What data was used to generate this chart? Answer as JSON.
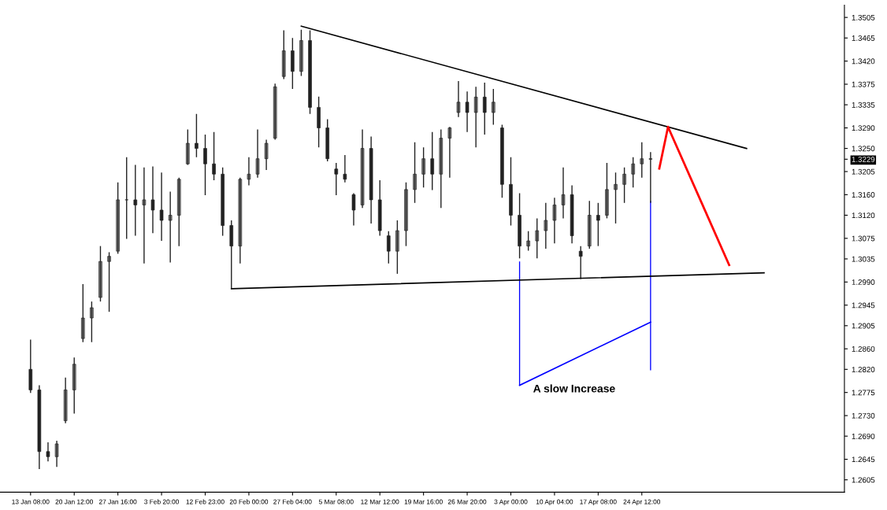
{
  "chart_data": {
    "type": "candlestick",
    "categories": [
      "13 Jan 08:00",
      null,
      null,
      null,
      null,
      "20 Jan 12:00",
      null,
      null,
      null,
      null,
      "27 Jan 16:00",
      null,
      null,
      null,
      null,
      "3 Feb 20:00",
      null,
      null,
      null,
      null,
      "12 Feb 23:00",
      null,
      null,
      null,
      null,
      "20 Feb 00:00",
      null,
      null,
      null,
      null,
      "27 Feb 04:00",
      null,
      null,
      null,
      null,
      "5 Mar 08:00",
      null,
      null,
      null,
      null,
      "12 Mar 12:00",
      null,
      null,
      null,
      null,
      "19 Mar 16:00",
      null,
      null,
      null,
      null,
      "26 Mar 20:00",
      null,
      null,
      null,
      null,
      "3 Apr 00:00",
      null,
      null,
      null,
      null,
      "10 Apr 04:00",
      null,
      null,
      null,
      null,
      "17 Apr 08:00",
      null,
      null,
      null,
      null,
      "24 Apr 12:00",
      null,
      null,
      null,
      null,
      null,
      null,
      null,
      null,
      null,
      null,
      null,
      null,
      null,
      null,
      null,
      null,
      null,
      null,
      null,
      null,
      null,
      null,
      null
    ],
    "ohlc": [
      [
        1.282,
        1.2878,
        1.2774,
        1.278
      ],
      [
        1.278,
        1.2789,
        1.2626,
        1.266
      ],
      [
        1.266,
        1.2678,
        1.2641,
        1.265
      ],
      [
        1.265,
        1.2681,
        1.263,
        1.2675
      ],
      [
        1.272,
        1.2804,
        1.2715,
        1.278
      ],
      [
        1.278,
        1.2843,
        1.2734,
        1.283
      ],
      [
        1.288,
        1.2986,
        1.2873,
        1.292
      ],
      [
        1.292,
        1.2952,
        1.2873,
        1.294
      ],
      [
        1.296,
        1.306,
        1.2952,
        1.303
      ],
      [
        1.303,
        1.3048,
        1.2932,
        1.304
      ],
      [
        1.305,
        1.3184,
        1.3045,
        1.315
      ],
      [
        1.315,
        1.3233,
        1.3074,
        1.315
      ],
      [
        1.315,
        1.3218,
        1.308,
        1.314
      ],
      [
        1.314,
        1.3213,
        1.3026,
        1.315
      ],
      [
        1.315,
        1.3215,
        1.3085,
        1.313
      ],
      [
        1.313,
        1.3203,
        1.307,
        1.311
      ],
      [
        1.311,
        1.3166,
        1.3028,
        1.312
      ],
      [
        1.312,
        1.3193,
        1.306,
        1.319
      ],
      [
        1.322,
        1.3287,
        1.3218,
        1.326
      ],
      [
        1.326,
        1.3317,
        1.3233,
        1.325
      ],
      [
        1.325,
        1.3277,
        1.3159,
        1.322
      ],
      [
        1.322,
        1.3282,
        1.3188,
        1.32
      ],
      [
        1.32,
        1.3213,
        1.308,
        1.31
      ],
      [
        1.31,
        1.311,
        1.2977,
        1.306
      ],
      [
        1.306,
        1.3193,
        1.3026,
        1.319
      ],
      [
        1.319,
        1.3233,
        1.3178,
        1.32
      ],
      [
        1.32,
        1.3287,
        1.3193,
        1.323
      ],
      [
        1.323,
        1.3267,
        1.3208,
        1.326
      ],
      [
        1.327,
        1.3376,
        1.3267,
        1.337
      ],
      [
        1.339,
        1.348,
        1.3385,
        1.344
      ],
      [
        1.344,
        1.3465,
        1.3366,
        1.34
      ],
      [
        1.34,
        1.3481,
        1.3391,
        1.346
      ],
      [
        1.346,
        1.348,
        1.3317,
        1.333
      ],
      [
        1.333,
        1.3351,
        1.3252,
        1.329
      ],
      [
        1.329,
        1.3307,
        1.3225,
        1.323
      ],
      [
        1.321,
        1.3222,
        1.3159,
        1.32
      ],
      [
        1.32,
        1.3237,
        1.3184,
        1.319
      ],
      [
        1.316,
        1.3163,
        1.31,
        1.313
      ],
      [
        1.314,
        1.3287,
        1.3134,
        1.325
      ],
      [
        1.325,
        1.3273,
        1.3104,
        1.315
      ],
      [
        1.315,
        1.3188,
        1.308,
        1.309
      ],
      [
        1.308,
        1.3089,
        1.3026,
        1.305
      ],
      [
        1.305,
        1.311,
        1.3006,
        1.309
      ],
      [
        1.309,
        1.3184,
        1.306,
        1.317
      ],
      [
        1.317,
        1.3262,
        1.3144,
        1.32
      ],
      [
        1.32,
        1.3252,
        1.3174,
        1.323
      ],
      [
        1.323,
        1.3282,
        1.3169,
        1.32
      ],
      [
        1.32,
        1.3287,
        1.3134,
        1.327
      ],
      [
        1.327,
        1.3292,
        1.3193,
        1.329
      ],
      [
        1.332,
        1.3381,
        1.3311,
        1.334
      ],
      [
        1.334,
        1.3361,
        1.3282,
        1.332
      ],
      [
        1.332,
        1.337,
        1.3252,
        1.335
      ],
      [
        1.335,
        1.3378,
        1.3277,
        1.332
      ],
      [
        1.332,
        1.3366,
        1.3296,
        1.334
      ],
      [
        1.329,
        1.3296,
        1.3154,
        1.318
      ],
      [
        1.318,
        1.3233,
        1.31,
        1.312
      ],
      [
        1.312,
        1.3163,
        1.3036,
        1.306
      ],
      [
        1.306,
        1.3089,
        1.3051,
        1.307
      ],
      [
        1.307,
        1.3114,
        1.3036,
        1.309
      ],
      [
        1.309,
        1.3144,
        1.3055,
        1.311
      ],
      [
        1.311,
        1.3154,
        1.3065,
        1.314
      ],
      [
        1.314,
        1.3213,
        1.3114,
        1.316
      ],
      [
        1.316,
        1.3178,
        1.3065,
        1.308
      ],
      [
        1.305,
        1.306,
        1.2996,
        1.304
      ],
      [
        1.306,
        1.3148,
        1.3055,
        1.312
      ],
      [
        1.312,
        1.3144,
        1.306,
        1.311
      ],
      [
        1.312,
        1.3222,
        1.3114,
        1.317
      ],
      [
        1.317,
        1.3203,
        1.3104,
        1.318
      ],
      [
        1.318,
        1.3213,
        1.3144,
        1.32
      ],
      [
        1.32,
        1.3233,
        1.3174,
        1.322
      ],
      [
        1.322,
        1.3262,
        1.3193,
        1.323
      ],
      [
        1.323,
        1.3243,
        1.3144,
        1.3229
      ],
      null,
      null,
      null,
      null,
      null,
      null,
      null,
      null,
      null,
      null,
      null,
      null,
      null,
      null,
      null,
      null,
      null,
      null,
      null,
      null,
      null,
      null
    ],
    "series": [
      {
        "type": "line",
        "color": "#000000",
        "values": [
          null,
          null,
          null,
          null,
          null,
          null,
          null,
          null,
          null,
          null,
          null,
          null,
          null,
          null,
          null,
          null,
          null,
          null,
          null,
          null,
          null,
          null,
          null,
          null,
          null,
          null,
          null,
          null,
          null,
          null,
          null,
          1.3488,
          null,
          null,
          null,
          null,
          null,
          null,
          null,
          null,
          null,
          null,
          null,
          null,
          null,
          null,
          null,
          null,
          null,
          null,
          null,
          null,
          null,
          null,
          null,
          null,
          null,
          null,
          null,
          null,
          null,
          null,
          null,
          null,
          null,
          null,
          null,
          null,
          null,
          null,
          null,
          null,
          null,
          null,
          null,
          null,
          null,
          null,
          null,
          null,
          null,
          null,
          1.325,
          null,
          null,
          null,
          null,
          null,
          null,
          null,
          null,
          null,
          null,
          null
        ]
      },
      {
        "type": "line",
        "color": "#000000",
        "values": [
          null,
          null,
          null,
          null,
          null,
          null,
          null,
          null,
          null,
          null,
          null,
          null,
          null,
          null,
          null,
          null,
          null,
          null,
          null,
          null,
          null,
          null,
          null,
          1.2977,
          null,
          null,
          null,
          null,
          null,
          null,
          null,
          null,
          null,
          null,
          null,
          null,
          null,
          null,
          null,
          null,
          null,
          null,
          null,
          null,
          null,
          null,
          null,
          null,
          null,
          null,
          null,
          null,
          null,
          null,
          null,
          null,
          null,
          null,
          null,
          null,
          null,
          null,
          null,
          null,
          null,
          null,
          null,
          null,
          null,
          null,
          null,
          null,
          null,
          null,
          null,
          null,
          null,
          null,
          null,
          null,
          null,
          null,
          null,
          null,
          1.3008,
          null,
          null,
          null,
          null,
          null,
          null,
          null,
          null,
          null
        ]
      },
      {
        "type": "line",
        "color": "#ff0000",
        "values": [
          null,
          null,
          null,
          null,
          null,
          null,
          null,
          null,
          null,
          null,
          null,
          null,
          null,
          null,
          null,
          null,
          null,
          null,
          null,
          null,
          null,
          null,
          null,
          null,
          null,
          null,
          null,
          null,
          null,
          null,
          null,
          null,
          null,
          null,
          null,
          null,
          null,
          null,
          null,
          null,
          null,
          null,
          null,
          null,
          null,
          null,
          null,
          null,
          null,
          null,
          null,
          null,
          null,
          null,
          null,
          null,
          null,
          null,
          null,
          null,
          null,
          null,
          null,
          null,
          null,
          null,
          null,
          null,
          null,
          null,
          null,
          null,
          1.3211,
          1.3292,
          null,
          null,
          null,
          null,
          null,
          null,
          1.3023,
          null,
          null,
          null,
          null,
          null,
          null,
          null,
          null,
          null,
          null,
          null,
          null,
          null
        ]
      },
      {
        "type": "line",
        "color": "#0000ff",
        "values": [
          null,
          null,
          null,
          null,
          null,
          null,
          null,
          null,
          null,
          null,
          null,
          null,
          null,
          null,
          null,
          null,
          null,
          null,
          null,
          null,
          null,
          null,
          null,
          null,
          null,
          null,
          null,
          null,
          null,
          null,
          null,
          null,
          null,
          null,
          null,
          null,
          null,
          null,
          null,
          null,
          null,
          null,
          null,
          null,
          null,
          null,
          null,
          null,
          null,
          null,
          null,
          null,
          null,
          null,
          null,
          null,
          1.2789,
          null,
          null,
          null,
          null,
          null,
          null,
          null,
          null,
          null,
          null,
          null,
          null,
          null,
          null,
          1.2912,
          null,
          null,
          null,
          null,
          null,
          null,
          null,
          null,
          null,
          null,
          null,
          null,
          null,
          null,
          null,
          null,
          null,
          null,
          null,
          null,
          null,
          null
        ]
      },
      {
        "type": "bar",
        "color": "#0000ff",
        "values": [
          null,
          null,
          null,
          null,
          null,
          null,
          null,
          null,
          null,
          null,
          null,
          null,
          null,
          null,
          null,
          null,
          null,
          null,
          null,
          null,
          null,
          null,
          null,
          null,
          null,
          null,
          null,
          null,
          null,
          null,
          null,
          null,
          null,
          null,
          null,
          null,
          null,
          null,
          null,
          null,
          null,
          null,
          null,
          null,
          null,
          null,
          null,
          null,
          null,
          null,
          null,
          null,
          null,
          null,
          null,
          null,
          0.0241,
          null,
          null,
          null,
          null,
          null,
          null,
          null,
          null,
          null,
          null,
          null,
          null,
          null,
          null,
          0.033,
          null,
          null,
          null,
          null,
          null,
          null,
          null,
          null,
          null,
          null,
          null,
          null,
          null,
          null,
          null,
          null,
          null,
          null,
          null,
          null,
          null,
          null
        ],
        "base": [
          null,
          null,
          null,
          null,
          null,
          null,
          null,
          null,
          null,
          null,
          null,
          null,
          null,
          null,
          null,
          null,
          null,
          null,
          null,
          null,
          null,
          null,
          null,
          null,
          null,
          null,
          null,
          null,
          null,
          null,
          null,
          null,
          null,
          null,
          null,
          null,
          null,
          null,
          null,
          null,
          null,
          null,
          null,
          null,
          null,
          null,
          null,
          null,
          null,
          null,
          null,
          null,
          null,
          null,
          null,
          null,
          1.2789,
          null,
          null,
          null,
          null,
          null,
          null,
          null,
          null,
          null,
          null,
          null,
          null,
          null,
          null,
          1.2818,
          null,
          null,
          null,
          null,
          null,
          null,
          null,
          null,
          null,
          null,
          null,
          null,
          null,
          null,
          null,
          null,
          null,
          null,
          null,
          null,
          null,
          null
        ]
      }
    ],
    "ylim": [
      1.2581,
      1.3529
    ],
    "yticks": [
      1.2605,
      1.2645,
      {
        "value": 1.269,
        "label": "1.2690"
      },
      {
        "value": 1.273,
        "label": "1.2730"
      },
      1.2775,
      {
        "value": 1.282,
        "label": "1.2820"
      },
      {
        "value": 1.286,
        "label": "1.2860"
      },
      1.2905,
      1.2945,
      {
        "value": 1.299,
        "label": "1.2990"
      },
      1.3035,
      1.3075,
      {
        "value": 1.312,
        "label": "1.3120"
      },
      {
        "value": 1.316,
        "label": "1.3160"
      },
      1.3205,
      {
        "value": 1.3229,
        "label": "1.3229"
      },
      {
        "value": 1.325,
        "label": "1.3250"
      },
      {
        "value": 1.329,
        "label": "1.3290"
      },
      1.3335,
      1.3375,
      {
        "value": 1.342,
        "label": "1.3420"
      },
      1.3465,
      1.3505
    ],
    "annotations": [
      "A slow Increase"
    ],
    "grid": false,
    "legend": false
  }
}
